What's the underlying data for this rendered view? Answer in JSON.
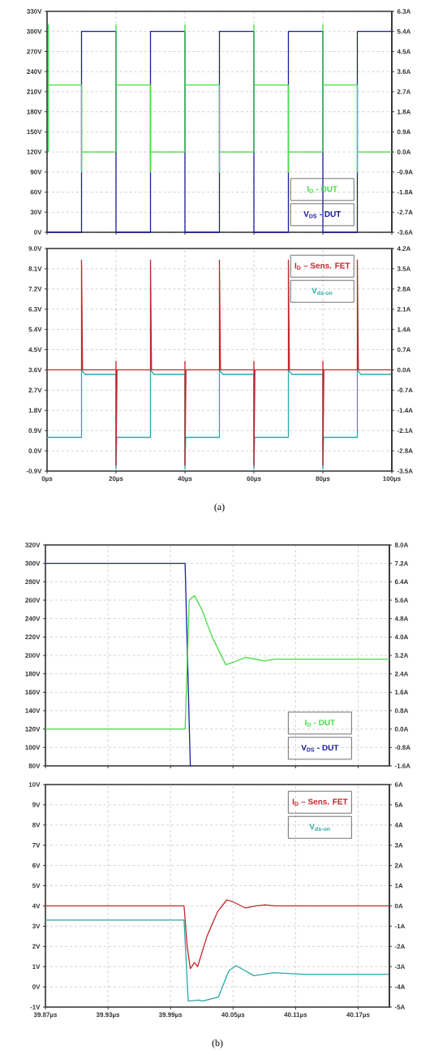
{
  "chart_data": [
    {
      "type": "line",
      "xlim": [
        0,
        100
      ],
      "xticks": [
        {
          "value": 0,
          "label": null
        },
        {
          "value": 20,
          "label": null
        },
        {
          "value": 40,
          "label": null
        },
        {
          "value": 60,
          "label": null
        },
        {
          "value": 80,
          "label": null
        },
        {
          "value": 100,
          "label": null
        }
      ],
      "ylim": [
        0,
        330
      ],
      "yticks": [
        {
          "value": 0,
          "label": "0V"
        },
        {
          "value": 30,
          "label": "30V"
        },
        {
          "value": 60,
          "label": "60V"
        },
        {
          "value": 90,
          "label": "90V"
        },
        {
          "value": 120,
          "label": "120V"
        },
        {
          "value": 150,
          "label": "150V"
        },
        {
          "value": 180,
          "label": "180V"
        },
        {
          "value": 210,
          "label": "210V"
        },
        {
          "value": 240,
          "label": "240V"
        },
        {
          "value": 270,
          "label": "270V"
        },
        {
          "value": 300,
          "label": "300V"
        },
        {
          "value": 330,
          "label": "330V"
        }
      ],
      "y2lim": [
        -3.6,
        6.3
      ],
      "y2ticks": [
        {
          "value": -3.6,
          "label": "-3.6A"
        },
        {
          "value": -2.7,
          "label": "-2.7A"
        },
        {
          "value": -1.8,
          "label": "-1.8A"
        },
        {
          "value": -0.9,
          "label": "-0.9A"
        },
        {
          "value": 0,
          "label": "0.0A"
        },
        {
          "value": 0.9,
          "label": "0.9A"
        },
        {
          "value": 1.8,
          "label": "1.8A"
        },
        {
          "value": 2.7,
          "label": "2.7A"
        },
        {
          "value": 3.6,
          "label": "3.6A"
        },
        {
          "value": 4.5,
          "label": "4.5A"
        },
        {
          "value": 5.4,
          "label": "5.4A"
        },
        {
          "value": 6.3,
          "label": "6.3A"
        }
      ],
      "tick_labels": "y",
      "grid": true,
      "legend": "bottom right",
      "marker": "none",
      "line_style": "solid",
      "series": [
        {
          "name": "I$_{D}$ - DUT",
          "color": "#44dd44",
          "axis": "y2",
          "x": [
            0.4,
            0.4,
            0.4,
            10,
            10,
            10,
            20,
            20,
            20,
            30,
            30,
            30,
            40,
            40,
            40,
            50,
            50,
            50,
            60,
            60,
            60,
            70,
            70,
            70,
            80,
            80,
            80,
            90,
            90,
            90,
            100
          ],
          "values": [
            0,
            5.7,
            3.0,
            3.0,
            -0.9,
            0,
            0,
            5.7,
            3.0,
            3.0,
            -0.9,
            0,
            0,
            5.7,
            3.0,
            3.0,
            -0.9,
            0,
            0,
            5.7,
            3.0,
            3.0,
            -0.9,
            0,
            0,
            5.7,
            3.0,
            3.0,
            -0.9,
            0,
            0
          ]
        },
        {
          "name": "V$_{DS}$ - DUT",
          "color": "#1c1c9c",
          "axis": "y",
          "x": [
            0,
            10,
            10,
            20,
            20,
            30,
            30,
            40,
            40,
            50,
            50,
            60,
            60,
            70,
            70,
            80,
            80,
            90,
            90,
            100
          ],
          "values": [
            0,
            0,
            300,
            300,
            0,
            0,
            300,
            300,
            0,
            0,
            300,
            300,
            0,
            0,
            300,
            300,
            0,
            0,
            300,
            300
          ]
        }
      ]
    },
    {
      "type": "line",
      "xlim": [
        0,
        100
      ],
      "xticks": [
        {
          "value": 0,
          "label": "0µs"
        },
        {
          "value": 20,
          "label": "20µs"
        },
        {
          "value": 40,
          "label": "40µs"
        },
        {
          "value": 60,
          "label": "60µs"
        },
        {
          "value": 80,
          "label": "80µs"
        },
        {
          "value": 100,
          "label": "100µs"
        }
      ],
      "ylim": [
        -0.9,
        9.0
      ],
      "yticks": [
        {
          "value": -0.9,
          "label": "-0.9V"
        },
        {
          "value": 0,
          "label": "0.0V"
        },
        {
          "value": 0.9,
          "label": "0.9V"
        },
        {
          "value": 1.8,
          "label": "1.8V"
        },
        {
          "value": 2.7,
          "label": "2.7V"
        },
        {
          "value": 3.6,
          "label": "3.6V"
        },
        {
          "value": 4.5,
          "label": "4.5V"
        },
        {
          "value": 5.4,
          "label": "5.4V"
        },
        {
          "value": 6.3,
          "label": "6.3V"
        },
        {
          "value": 7.2,
          "label": "7.2V"
        },
        {
          "value": 8.1,
          "label": "8.1V"
        },
        {
          "value": 9.0,
          "label": "9.0V"
        }
      ],
      "y2lim": [
        -3.5,
        4.2
      ],
      "y2ticks": [
        {
          "value": -3.5,
          "label": "-3.5A"
        },
        {
          "value": -2.8,
          "label": "-2.8A"
        },
        {
          "value": -2.1,
          "label": "-2.1A"
        },
        {
          "value": -1.4,
          "label": "-1.4A"
        },
        {
          "value": -0.7,
          "label": "-0.7A"
        },
        {
          "value": 0,
          "label": "0.0A"
        },
        {
          "value": 0.7,
          "label": "0.7A"
        },
        {
          "value": 1.4,
          "label": "1.4A"
        },
        {
          "value": 2.1,
          "label": "2.1A"
        },
        {
          "value": 2.8,
          "label": "2.8A"
        },
        {
          "value": 3.5,
          "label": "3.5A"
        },
        {
          "value": 4.2,
          "label": "4.2A"
        }
      ],
      "grid": true,
      "legend": "top right",
      "marker": "none",
      "line_style": "solid",
      "annotations": [
        "(a)"
      ],
      "series": [
        {
          "name": "I$_{D}$ – Sens. FET",
          "color": "#c0282d",
          "axis": "y2",
          "x": [
            0,
            10,
            10,
            10.3,
            20,
            20,
            20,
            20.3,
            30,
            30,
            30.3,
            40,
            40,
            40,
            40.3,
            50,
            50,
            50.3,
            60,
            60,
            60,
            60.3,
            70,
            70,
            70.3,
            80,
            80,
            80,
            80.3,
            90,
            90,
            90.3,
            100
          ],
          "values": [
            0,
            0,
            3.8,
            0,
            0,
            0.3,
            -3.3,
            0,
            0,
            3.8,
            0,
            0,
            0.3,
            -3.3,
            0,
            0,
            3.8,
            0,
            0,
            0.3,
            -3.3,
            0,
            0,
            3.8,
            0,
            0,
            0.3,
            -3.3,
            0,
            0,
            3.8,
            0,
            0
          ]
        },
        {
          "name": "V$_{ds-on}$",
          "color": "#2aa9a9",
          "axis": "y",
          "x": [
            0,
            10,
            10,
            11,
            20,
            20,
            20.2,
            30,
            30,
            31,
            40,
            40,
            40.2,
            50,
            50,
            51,
            60,
            60,
            60.2,
            70,
            70,
            71,
            80,
            80,
            80.2,
            90,
            90,
            91,
            100
          ],
          "values": [
            0.6,
            0.6,
            3.6,
            3.4,
            3.4,
            -0.8,
            0.6,
            0.6,
            3.6,
            3.4,
            3.4,
            -0.8,
            0.6,
            0.6,
            3.6,
            3.4,
            3.4,
            -0.8,
            0.6,
            0.6,
            3.6,
            3.4,
            3.4,
            -0.8,
            0.6,
            0.6,
            3.6,
            3.4,
            3.4
          ]
        }
      ]
    },
    {
      "type": "line",
      "xlim": [
        39.87,
        40.2
      ],
      "xticks": [
        {
          "value": 39.87,
          "label": null
        },
        {
          "value": 39.93,
          "label": null
        },
        {
          "value": 39.99,
          "label": null
        },
        {
          "value": 40.05,
          "label": null
        },
        {
          "value": 40.11,
          "label": null
        },
        {
          "value": 40.17,
          "label": null
        }
      ],
      "ylim": [
        80,
        320
      ],
      "yticks": [
        {
          "value": 80,
          "label": "80V"
        },
        {
          "value": 100,
          "label": "100V"
        },
        {
          "value": 120,
          "label": "120V"
        },
        {
          "value": 140,
          "label": "140V"
        },
        {
          "value": 160,
          "label": "160V"
        },
        {
          "value": 180,
          "label": "180V"
        },
        {
          "value": 200,
          "label": "200V"
        },
        {
          "value": 220,
          "label": "220V"
        },
        {
          "value": 240,
          "label": "240V"
        },
        {
          "value": 260,
          "label": "260V"
        },
        {
          "value": 280,
          "label": "280V"
        },
        {
          "value": 300,
          "label": "300V"
        },
        {
          "value": 320,
          "label": "320V"
        }
      ],
      "y2lim": [
        -1.6,
        8.0
      ],
      "y2ticks": [
        {
          "value": -1.6,
          "label": "-1.6A"
        },
        {
          "value": -0.8,
          "label": "-0.8A"
        },
        {
          "value": 0,
          "label": "0.0A"
        },
        {
          "value": 0.8,
          "label": "0.8A"
        },
        {
          "value": 1.6,
          "label": "1.6A"
        },
        {
          "value": 2.4,
          "label": "2.4A"
        },
        {
          "value": 3.2,
          "label": "3.2A"
        },
        {
          "value": 4.0,
          "label": "4.0A"
        },
        {
          "value": 4.8,
          "label": "4.8A"
        },
        {
          "value": 5.6,
          "label": "5.6A"
        },
        {
          "value": 6.4,
          "label": "6.4A"
        },
        {
          "value": 7.2,
          "label": "7.2A"
        },
        {
          "value": 8.0,
          "label": "8.0A"
        }
      ],
      "tick_labels": "y",
      "grid": true,
      "legend": "bottom right",
      "marker": "none",
      "line_style": "solid",
      "series": [
        {
          "name": "I$_{D}$ - DUT",
          "color": "#44dd44",
          "axis": "y2",
          "x": [
            39.87,
            40.004,
            40.008,
            40.013,
            40.02,
            40.03,
            40.043,
            40.05,
            40.062,
            40.07,
            40.08,
            40.09,
            40.2
          ],
          "values": [
            0,
            0,
            5.6,
            5.8,
            5.2,
            4.0,
            2.8,
            2.9,
            3.12,
            3.05,
            2.96,
            3.04,
            3.04
          ]
        },
        {
          "name": "V$_{DS}$ - DUT",
          "color": "#1c1c9c",
          "axis": "y",
          "x": [
            39.87,
            40.004,
            40.009
          ],
          "values": [
            300,
            300,
            80
          ]
        }
      ]
    },
    {
      "type": "line",
      "xlim": [
        39.87,
        40.2
      ],
      "xticks": [
        {
          "value": 39.87,
          "label": "39.87µs"
        },
        {
          "value": 39.93,
          "label": "39.93µs"
        },
        {
          "value": 39.99,
          "label": "39.99µs"
        },
        {
          "value": 40.05,
          "label": "40.05µs"
        },
        {
          "value": 40.11,
          "label": "40.11µs"
        },
        {
          "value": 40.17,
          "label": "40.17µs"
        }
      ],
      "ylim": [
        -1,
        10
      ],
      "yticks": [
        {
          "value": -1,
          "label": "-1V"
        },
        {
          "value": 0,
          "label": "0V"
        },
        {
          "value": 1,
          "label": "1V"
        },
        {
          "value": 2,
          "label": "2V"
        },
        {
          "value": 3,
          "label": "3V"
        },
        {
          "value": 4,
          "label": "4V"
        },
        {
          "value": 5,
          "label": "5V"
        },
        {
          "value": 6,
          "label": "6V"
        },
        {
          "value": 7,
          "label": "7V"
        },
        {
          "value": 8,
          "label": "8V"
        },
        {
          "value": 9,
          "label": "9V"
        },
        {
          "value": 10,
          "label": "10V"
        }
      ],
      "y2lim": [
        -5,
        6
      ],
      "y2ticks": [
        {
          "value": -5,
          "label": "-5A"
        },
        {
          "value": -4,
          "label": "-4A"
        },
        {
          "value": -3,
          "label": "-3A"
        },
        {
          "value": -2,
          "label": "-2A"
        },
        {
          "value": -1,
          "label": "-1A"
        },
        {
          "value": 0,
          "label": "0A"
        },
        {
          "value": 1,
          "label": "1A"
        },
        {
          "value": 2,
          "label": "2A"
        },
        {
          "value": 3,
          "label": "3A"
        },
        {
          "value": 4,
          "label": "4A"
        },
        {
          "value": 5,
          "label": "5A"
        },
        {
          "value": 6,
          "label": "6A"
        }
      ],
      "grid": true,
      "legend": "top right",
      "marker": "none",
      "line_style": "solid",
      "annotations": [
        "(b)"
      ],
      "series": [
        {
          "name": "I$_{D}$ – Sens. FET",
          "color": "#c0282d",
          "axis": "y2",
          "x": [
            39.87,
            40.003,
            40.006,
            40.009,
            40.013,
            40.016,
            40.025,
            40.035,
            40.044,
            40.05,
            40.062,
            40.072,
            40.081,
            40.09,
            40.2
          ],
          "values": [
            0,
            0,
            -2.0,
            -3.1,
            -2.8,
            -3.0,
            -1.5,
            -0.3,
            0.3,
            0.2,
            -0.1,
            0.0,
            0.05,
            0.0,
            0.0
          ]
        },
        {
          "name": "V$_{ds-on}$",
          "color": "#2aa9a9",
          "axis": "y",
          "x": [
            39.87,
            40.003,
            40.007,
            40.017,
            40.021,
            40.036,
            40.046,
            40.053,
            40.07,
            40.089,
            40.118,
            40.2
          ],
          "values": [
            3.3,
            3.3,
            -0.7,
            -0.65,
            -0.7,
            -0.5,
            0.8,
            1.05,
            0.55,
            0.7,
            0.62,
            0.62
          ]
        }
      ]
    }
  ]
}
